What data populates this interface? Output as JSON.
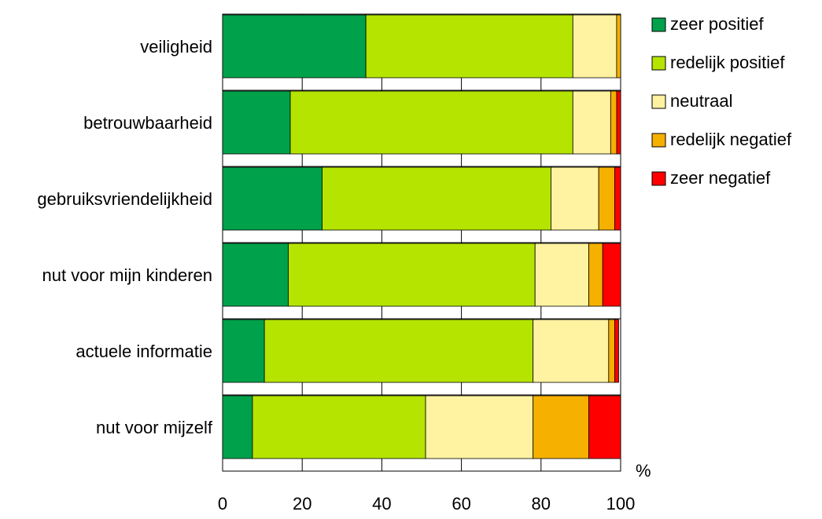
{
  "chart_data": {
    "type": "bar",
    "orientation": "horizontal",
    "stacked": true,
    "categories": [
      "veiligheid",
      "betrouwbaarheid",
      "gebruiksvriendelijkheid",
      "nut voor mijn kinderen",
      "actuele informatie",
      "nut voor mijzelf"
    ],
    "series": [
      {
        "name": "zeer positief",
        "color": "#00a14b",
        "values": [
          36,
          17,
          25,
          16.5,
          10.5,
          7.5
        ]
      },
      {
        "name": "redelijk positief",
        "color": "#b5e400",
        "values": [
          52,
          71,
          57.5,
          62,
          67.5,
          43.5
        ]
      },
      {
        "name": "neutraal",
        "color": "#fff2a0",
        "values": [
          11,
          9.5,
          12,
          13.5,
          19,
          27
        ]
      },
      {
        "name": "redelijk negatief",
        "color": "#f5b000",
        "values": [
          1,
          1.5,
          4,
          3.5,
          1.5,
          14
        ]
      },
      {
        "name": "zeer negatief",
        "color": "#ff0000",
        "values": [
          0,
          1,
          1.5,
          4.5,
          1,
          8
        ]
      }
    ],
    "xlim": [
      0,
      100
    ],
    "xticks": [
      0,
      20,
      40,
      60,
      80,
      100
    ],
    "xlabel": "%",
    "title": "",
    "ylabel": "",
    "grid": "vertical",
    "legend_position": "top-right"
  }
}
